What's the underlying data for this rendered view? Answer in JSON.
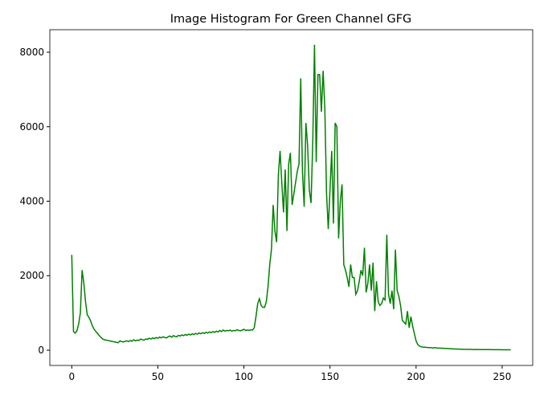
{
  "chart_data": {
    "type": "line",
    "title": "Image Histogram For Green Channel GFG",
    "x": [
      0,
      1,
      2,
      3,
      4,
      5,
      6,
      7,
      8,
      9,
      10,
      11,
      12,
      13,
      14,
      15,
      16,
      17,
      18,
      19,
      20,
      21,
      22,
      23,
      24,
      25,
      26,
      27,
      28,
      29,
      30,
      31,
      32,
      33,
      34,
      35,
      36,
      37,
      38,
      39,
      40,
      41,
      42,
      43,
      44,
      45,
      46,
      47,
      48,
      49,
      50,
      51,
      52,
      53,
      54,
      55,
      56,
      57,
      58,
      59,
      60,
      61,
      62,
      63,
      64,
      65,
      66,
      67,
      68,
      69,
      70,
      71,
      72,
      73,
      74,
      75,
      76,
      77,
      78,
      79,
      80,
      81,
      82,
      83,
      84,
      85,
      86,
      87,
      88,
      89,
      90,
      91,
      92,
      93,
      94,
      95,
      96,
      97,
      98,
      99,
      100,
      101,
      102,
      103,
      104,
      105,
      106,
      107,
      108,
      109,
      110,
      111,
      112,
      113,
      114,
      115,
      116,
      117,
      118,
      119,
      120,
      121,
      122,
      123,
      124,
      125,
      126,
      127,
      128,
      129,
      130,
      131,
      132,
      133,
      134,
      135,
      136,
      137,
      138,
      139,
      140,
      141,
      142,
      143,
      144,
      145,
      146,
      147,
      148,
      149,
      150,
      151,
      152,
      153,
      154,
      155,
      156,
      157,
      158,
      159,
      160,
      161,
      162,
      163,
      164,
      165,
      166,
      167,
      168,
      169,
      170,
      171,
      172,
      173,
      174,
      175,
      176,
      177,
      178,
      179,
      180,
      181,
      182,
      183,
      184,
      185,
      186,
      187,
      188,
      189,
      190,
      191,
      192,
      193,
      194,
      195,
      196,
      197,
      198,
      199,
      200,
      201,
      202,
      203,
      204,
      205,
      206,
      207,
      208,
      209,
      210,
      211,
      212,
      213,
      214,
      215,
      216,
      217,
      218,
      219,
      220,
      221,
      222,
      223,
      224,
      225,
      226,
      227,
      228,
      229,
      230,
      231,
      232,
      233,
      234,
      235,
      236,
      237,
      238,
      239,
      240,
      241,
      242,
      243,
      244,
      245,
      246,
      247,
      248,
      249,
      250,
      251,
      252,
      253,
      254,
      255
    ],
    "series": [
      {
        "color": "#008000",
        "values": [
          2560,
          500,
          460,
          520,
          700,
          1000,
          2150,
          1800,
          1300,
          950,
          880,
          780,
          650,
          560,
          500,
          450,
          390,
          340,
          300,
          280,
          270,
          260,
          250,
          240,
          230,
          220,
          210,
          200,
          250,
          230,
          220,
          240,
          250,
          230,
          260,
          240,
          280,
          250,
          270,
          260,
          300,
          280,
          270,
          300,
          290,
          320,
          300,
          330,
          310,
          340,
          320,
          350,
          330,
          360,
          340,
          330,
          360,
          380,
          350,
          390,
          370,
          360,
          400,
          380,
          410,
          390,
          420,
          400,
          430,
          410,
          440,
          420,
          450,
          430,
          460,
          440,
          470,
          450,
          480,
          460,
          490,
          470,
          500,
          480,
          510,
          490,
          530,
          500,
          540,
          510,
          530,
          520,
          540,
          510,
          530,
          520,
          550,
          530,
          520,
          540,
          560,
          530,
          540,
          530,
          550,
          540,
          600,
          900,
          1250,
          1380,
          1200,
          1150,
          1150,
          1300,
          1700,
          2300,
          2700,
          3900,
          3200,
          2900,
          4700,
          5350,
          4500,
          3700,
          4850,
          3200,
          5000,
          5300,
          3900,
          4200,
          4500,
          4800,
          5000,
          7300,
          4800,
          3850,
          6100,
          5500,
          4300,
          3950,
          5600,
          8200,
          5050,
          7400,
          7400,
          6400,
          7500,
          6500,
          4200,
          3250,
          4300,
          5350,
          3400,
          6100,
          6000,
          3000,
          4000,
          4450,
          2300,
          2150,
          1950,
          1700,
          2300,
          1950,
          1950,
          1500,
          1600,
          1850,
          2150,
          2000,
          2750,
          1550,
          1800,
          2300,
          1600,
          2350,
          1050,
          1850,
          1300,
          1200,
          1250,
          1400,
          1350,
          3100,
          1500,
          1250,
          1600,
          1100,
          2700,
          1600,
          1450,
          1200,
          800,
          750,
          700,
          1050,
          600,
          900,
          650,
          450,
          250,
          150,
          110,
          90,
          80,
          80,
          75,
          70,
          70,
          65,
          60,
          70,
          60,
          55,
          55,
          50,
          50,
          45,
          45,
          40,
          40,
          35,
          35,
          30,
          30,
          30,
          25,
          25,
          25,
          20,
          20,
          20,
          20,
          15,
          15,
          20,
          15,
          15,
          15,
          15,
          15,
          15,
          15,
          15,
          12,
          12,
          12,
          12,
          12,
          12,
          10,
          10,
          10,
          10,
          10,
          10
        ]
      }
    ],
    "xlim": [
      -12.75,
      267.75
    ],
    "ylim": [
      -410,
      8604
    ],
    "xticks": [
      0,
      50,
      100,
      150,
      200,
      250
    ],
    "yticks": [
      0,
      2000,
      4000,
      6000,
      8000
    ],
    "grid": false
  }
}
